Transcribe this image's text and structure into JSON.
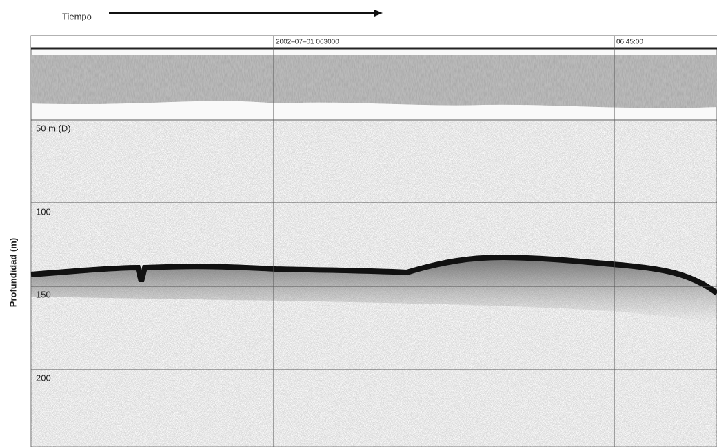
{
  "header": {
    "time_label": "Tiempo"
  },
  "axis": {
    "depth_label": "Profundidad (m)"
  },
  "timestamps": [
    "2002–07–01 063000",
    "06:45:00"
  ],
  "depth_labels": [
    "50 m (D)",
    "100",
    "150",
    "200"
  ]
}
